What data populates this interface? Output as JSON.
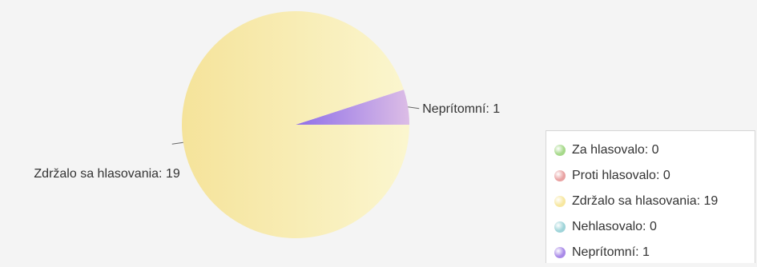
{
  "chart_data": {
    "type": "pie",
    "title": "",
    "slices": [
      {
        "label": "Za hlasovalo",
        "value": 0,
        "color": "#a6d98a"
      },
      {
        "label": "Proti hlasovalo",
        "value": 0,
        "color": "#e9a2a2"
      },
      {
        "label": "Zdržalo sa hlasovania",
        "value": 19,
        "color": "#f7e7a0"
      },
      {
        "label": "Nehlasovalo",
        "value": 0,
        "color": "#9fd4d9"
      },
      {
        "label": "Neprítomní",
        "value": 1,
        "color": "#a98ae8"
      }
    ],
    "data_labels": [
      {
        "text": "Neprítomní: 1",
        "slice": "Neprítomní"
      },
      {
        "text": "Zdržalo sa hlasovania: 19",
        "slice": "Zdržalo sa hlasovania"
      }
    ],
    "legend_position": "bottom-right",
    "legend": [
      {
        "text": "Za hlasovalo: 0",
        "color": "#a6d98a"
      },
      {
        "text": "Proti hlasovalo: 0",
        "color": "#e9a2a2"
      },
      {
        "text": "Zdržalo sa hlasovania: 19",
        "color": "#f7e7a0"
      },
      {
        "text": "Nehlasovalo: 0",
        "color": "#9fd4d9"
      },
      {
        "text": "Neprítomní: 1",
        "color": "#a98ae8"
      }
    ]
  }
}
